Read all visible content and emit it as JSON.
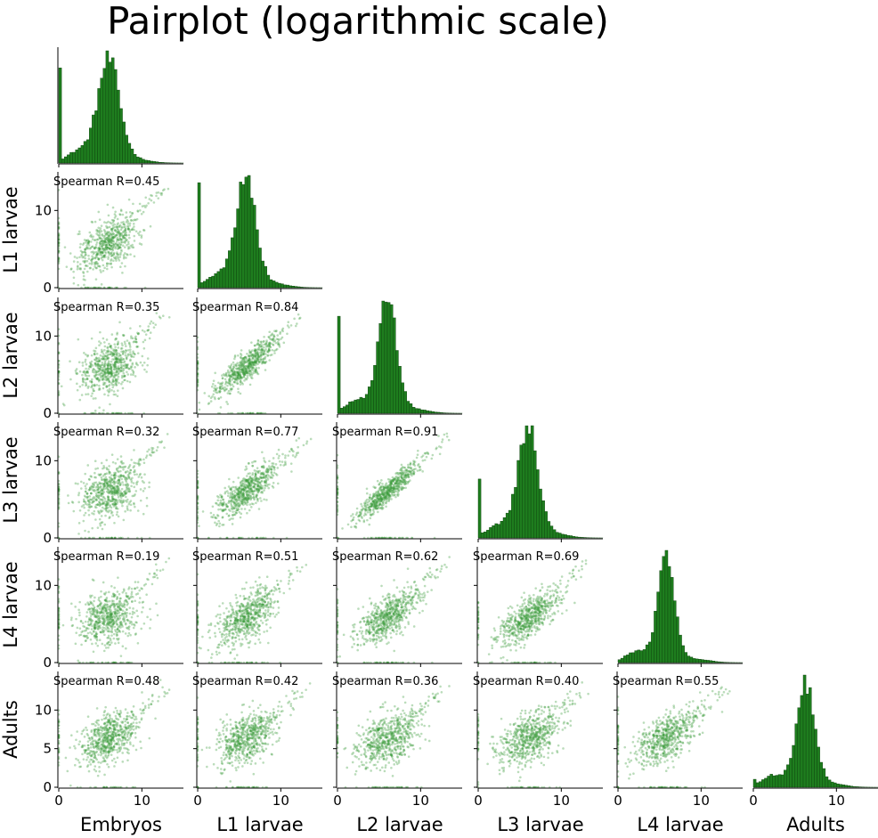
{
  "chart_data": {
    "type": "scatter",
    "title": "Pairplot (logarithmic scale)",
    "variables": [
      "Embryos",
      "L1 larvae",
      "L2 larvae",
      "L3 larvae",
      "L4 larvae",
      "Adults"
    ],
    "layout": "lower-triangle pairplot with histograms on the diagonal",
    "axis_range": [
      0,
      15
    ],
    "x_ticks": [
      0,
      10
    ],
    "y_ticks": [
      0,
      10
    ],
    "adults_y_ticks": [
      0,
      5,
      10
    ],
    "annotation_prefix": "Spearman R=",
    "spearman": [
      {
        "row": "L1 larvae",
        "col": "Embryos",
        "r": "0.45"
      },
      {
        "row": "L2 larvae",
        "col": "Embryos",
        "r": "0.35"
      },
      {
        "row": "L2 larvae",
        "col": "L1 larvae",
        "r": "0.84"
      },
      {
        "row": "L3 larvae",
        "col": "Embryos",
        "r": "0.32"
      },
      {
        "row": "L3 larvae",
        "col": "L1 larvae",
        "r": "0.77"
      },
      {
        "row": "L3 larvae",
        "col": "L2 larvae",
        "r": "0.91"
      },
      {
        "row": "L4 larvae",
        "col": "Embryos",
        "r": "0.19"
      },
      {
        "row": "L4 larvae",
        "col": "L1 larvae",
        "r": "0.51"
      },
      {
        "row": "L4 larvae",
        "col": "L2 larvae",
        "r": "0.62"
      },
      {
        "row": "L4 larvae",
        "col": "L3 larvae",
        "r": "0.69"
      },
      {
        "row": "Adults",
        "col": "Embryos",
        "r": "0.48"
      },
      {
        "row": "Adults",
        "col": "L1 larvae",
        "r": "0.42"
      },
      {
        "row": "Adults",
        "col": "L2 larvae",
        "r": "0.36"
      },
      {
        "row": "Adults",
        "col": "L3 larvae",
        "r": "0.40"
      },
      {
        "row": "Adults",
        "col": "L4 larvae",
        "r": "0.55"
      }
    ],
    "distributions": {
      "Embryos": {
        "zero_peak": 1.0,
        "mode": 6.0,
        "spread": 1.3
      },
      "L1 larvae": {
        "zero_peak": 0.9,
        "mode": 5.8,
        "spread": 1.2
      },
      "L2 larvae": {
        "zero_peak": 0.85,
        "mode": 6.0,
        "spread": 1.1
      },
      "L3 larvae": {
        "zero_peak": 0.55,
        "mode": 6.0,
        "spread": 1.2
      },
      "L4 larvae": {
        "zero_peak": 0.0,
        "mode": 5.8,
        "spread": 1.0
      },
      "Adults": {
        "zero_peak": 0.05,
        "mode": 6.3,
        "spread": 1.1
      }
    },
    "colors": {
      "points": "#3a9a3a",
      "bars": "#1e7d1e",
      "bar_edge": "#0a3d0a",
      "axis": "#000000"
    },
    "grid": false,
    "legend": "none"
  }
}
